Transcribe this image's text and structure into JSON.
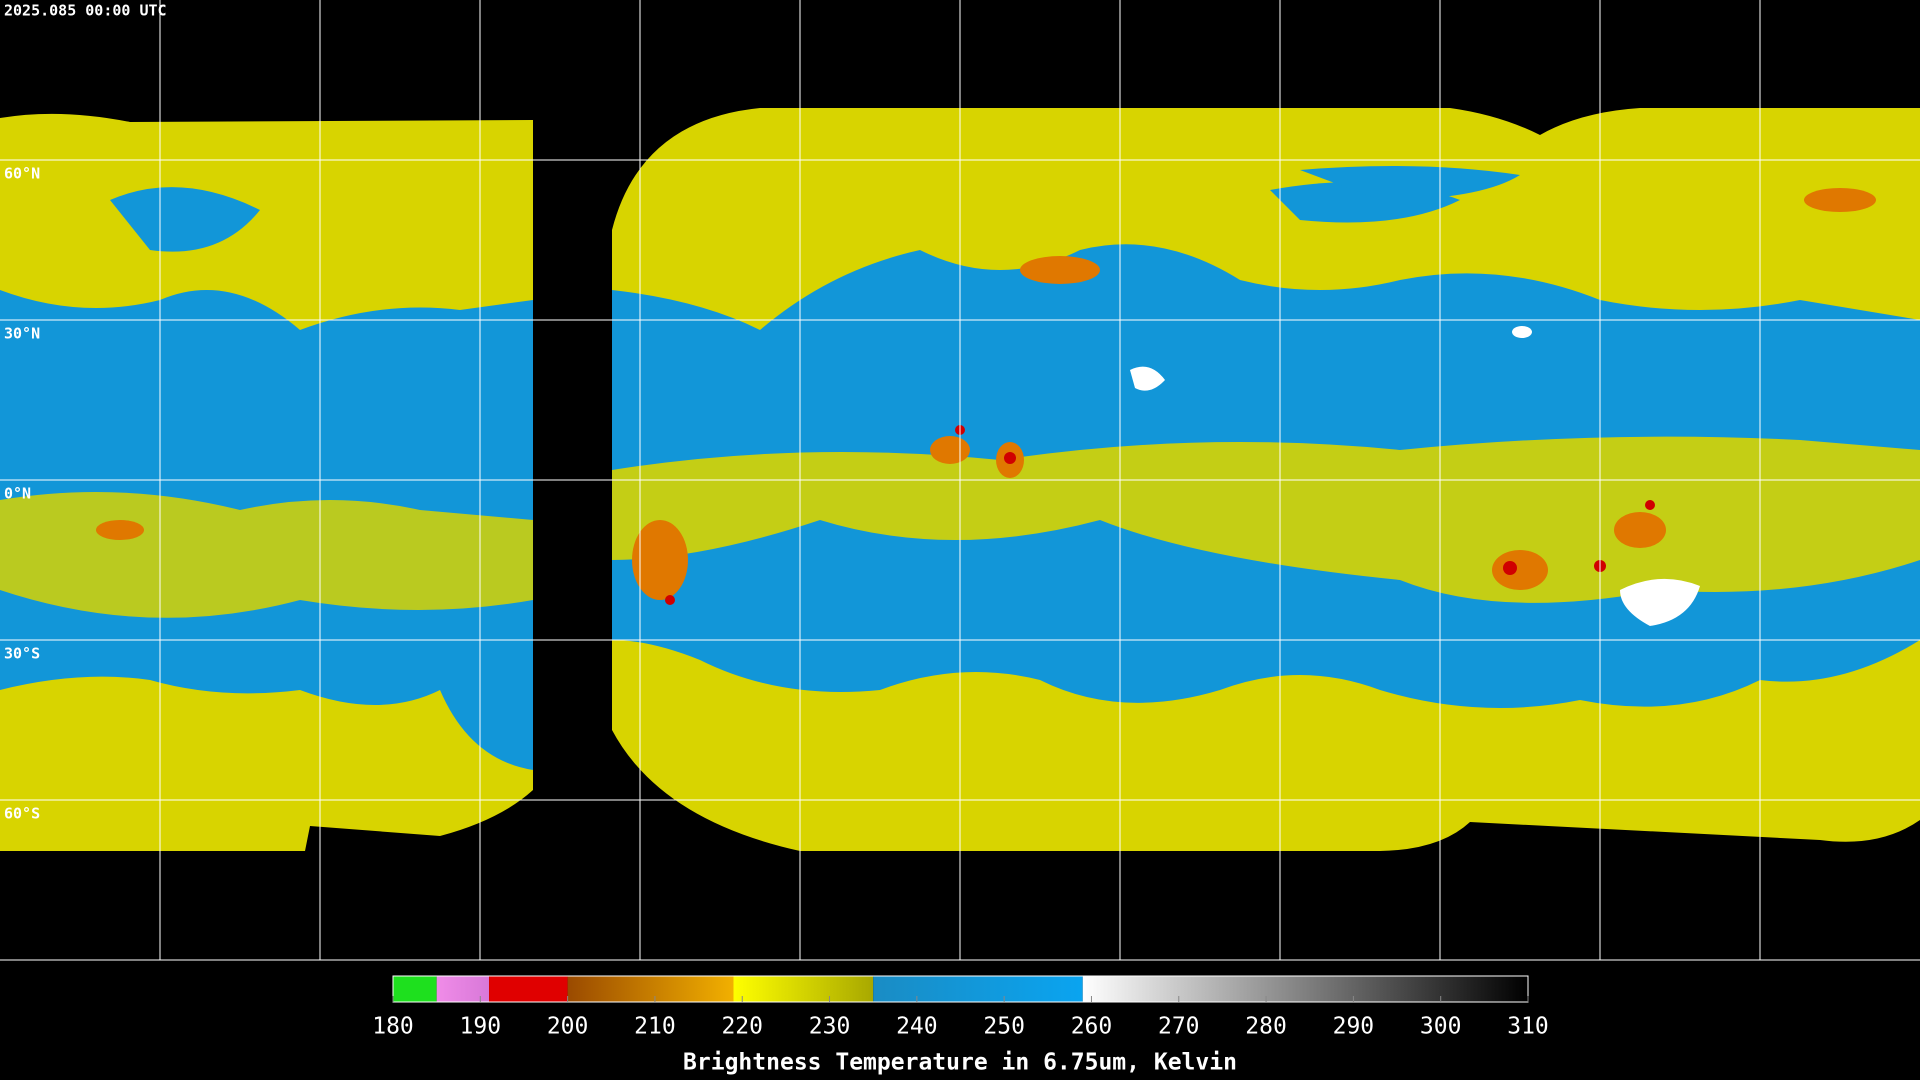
{
  "header": {
    "timestamp": "2025.085 00:00 UTC"
  },
  "map": {
    "latitude_labels": [
      "60°N",
      "30°N",
      "0°N",
      "30°S",
      "60°S"
    ]
  },
  "colorbar": {
    "range": [
      180,
      310
    ],
    "ticks": [
      180,
      190,
      200,
      210,
      220,
      230,
      240,
      250,
      260,
      270,
      280,
      290,
      300,
      310
    ],
    "label": "Brightness Temperature in 6.75um, Kelvin",
    "segments": [
      {
        "from": 180,
        "to": 185,
        "colors": [
          "#1ee01e",
          "#1ee01e"
        ]
      },
      {
        "from": 185,
        "to": 191,
        "colors": [
          "#f08ce8",
          "#d878d8"
        ]
      },
      {
        "from": 191,
        "to": 200,
        "colors": [
          "#e00000",
          "#e00000"
        ]
      },
      {
        "from": 200,
        "to": 219,
        "colors": [
          "#9a4a00",
          "#f2b000"
        ]
      },
      {
        "from": 219,
        "to": 235,
        "colors": [
          "#ffff00",
          "#a8a800"
        ]
      },
      {
        "from": 235,
        "to": 259,
        "colors": [
          "#1a8cc4",
          "#0aa4f0"
        ]
      },
      {
        "from": 259,
        "to": 310,
        "colors": [
          "#ffffff",
          "#000000"
        ]
      }
    ]
  }
}
